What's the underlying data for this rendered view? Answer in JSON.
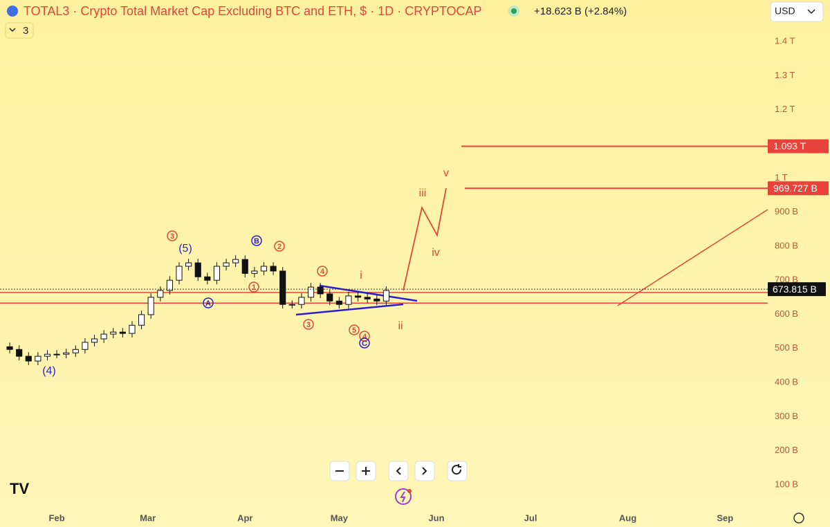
{
  "chart_data": {
    "type": "candlestick",
    "title": "TOTAL3 · Crypto Total Market Cap Excluding BTC and ETH, $ · 1D · CRYPTOCAP",
    "change": "+18.623 B (+2.84%)",
    "currency": "USD",
    "drawings_count": "3",
    "x": [
      16,
      19,
      22,
      25,
      28,
      31,
      34,
      37,
      40,
      43,
      46,
      49,
      52,
      55,
      58,
      61,
      64,
      67,
      70,
      73,
      76,
      79,
      82,
      85,
      88,
      91,
      94,
      97,
      100,
      103,
      106,
      109,
      112,
      115,
      118,
      121,
      124,
      127,
      130,
      133,
      136
    ],
    "open": [
      505,
      497,
      477,
      463,
      477,
      483,
      483,
      487,
      497,
      518,
      528,
      542,
      548,
      544,
      568,
      599,
      650,
      670,
      700,
      741,
      751,
      710,
      700,
      741,
      751,
      761,
      720,
      727,
      741,
      727,
      629,
      629,
      650,
      680,
      660,
      639,
      629,
      654,
      650,
      645,
      639
    ],
    "high": [
      517,
      509,
      489,
      489,
      495,
      495,
      499,
      509,
      530,
      540,
      554,
      560,
      560,
      580,
      611,
      662,
      682,
      712,
      753,
      763,
      763,
      722,
      753,
      763,
      773,
      773,
      739,
      753,
      753,
      739,
      641,
      662,
      692,
      692,
      672,
      651,
      666,
      666,
      662,
      657,
      682
    ],
    "low": [
      485,
      465,
      451,
      451,
      465,
      471,
      471,
      475,
      485,
      506,
      516,
      530,
      532,
      532,
      556,
      587,
      638,
      658,
      688,
      729,
      698,
      688,
      688,
      729,
      739,
      708,
      708,
      715,
      715,
      617,
      617,
      617,
      638,
      648,
      627,
      617,
      617,
      638,
      633,
      627,
      627
    ],
    "close": [
      497,
      477,
      463,
      477,
      483,
      483,
      487,
      497,
      518,
      528,
      542,
      548,
      544,
      568,
      599,
      650,
      670,
      700,
      741,
      751,
      710,
      700,
      741,
      751,
      761,
      720,
      727,
      741,
      727,
      629,
      629,
      650,
      680,
      660,
      639,
      629,
      654,
      650,
      645,
      639,
      670
    ],
    "xlim": [
      12.9,
      257.6
    ],
    "xticks": [
      {
        "value": 31,
        "label": "Feb"
      },
      {
        "value": 60,
        "label": "Mar"
      },
      {
        "value": 91,
        "label": "Apr"
      },
      {
        "value": 121,
        "label": "May"
      },
      {
        "value": 152,
        "label": "Jun"
      },
      {
        "value": 182,
        "label": "Jul"
      },
      {
        "value": 213,
        "label": "Aug"
      },
      {
        "value": 244,
        "label": "Sep"
      }
    ],
    "ylim": [
      31,
      1522
    ],
    "yticks": [
      {
        "value": 100,
        "label": "100 B"
      },
      {
        "value": 200,
        "label": "200 B"
      },
      {
        "value": 300,
        "label": "300 B"
      },
      {
        "value": 400,
        "label": "400 B"
      },
      {
        "value": 500,
        "label": "500 B"
      },
      {
        "value": 600,
        "label": "600 B"
      },
      {
        "value": 700,
        "label": "700 B"
      },
      {
        "value": 800,
        "label": "800 B"
      },
      {
        "value": 900,
        "label": "900 B"
      },
      {
        "value": 1000,
        "label": "1 T"
      },
      {
        "value": 1200,
        "label": "1.2 T"
      },
      {
        "value": 1300,
        "label": "1.3 T"
      },
      {
        "value": 1400,
        "label": "1.4 T"
      }
    ],
    "price_lines": [
      {
        "value": 1093,
        "label": "1.093 T"
      },
      {
        "value": 969.727,
        "label": "969.727 B"
      }
    ],
    "current_price": {
      "value": 673.815,
      "label": "673.815 B"
    },
    "support_lines": [
      664,
      633
    ],
    "annotations": [
      "3",
      "(5)",
      "B",
      "2",
      "1",
      "A",
      "4",
      "i",
      "3",
      "5",
      "4",
      "C",
      "ii",
      "iii",
      "v",
      "iv",
      "(4)"
    ]
  }
}
